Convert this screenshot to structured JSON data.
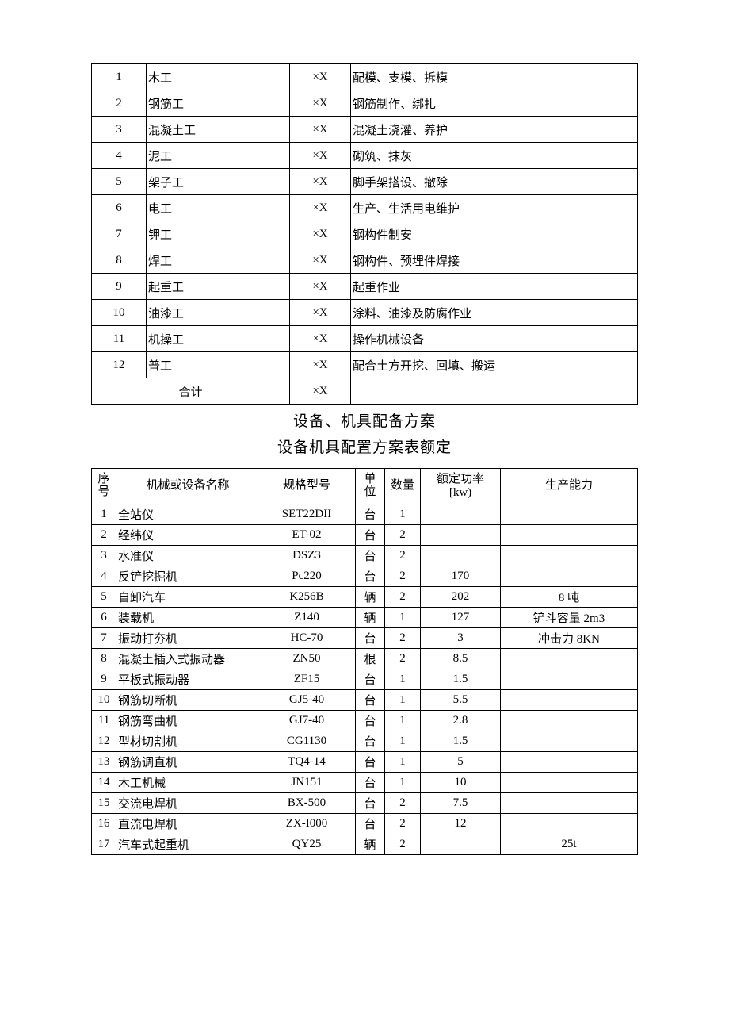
{
  "table1": {
    "rows": [
      {
        "no": "1",
        "name": "木工",
        "qty": "×X",
        "desc": "配模、支模、拆模"
      },
      {
        "no": "2",
        "name": "钢筋工",
        "qty": "×X",
        "desc": "钢筋制作、绑扎"
      },
      {
        "no": "3",
        "name": "混凝土工",
        "qty": "×X",
        "desc": "混凝土浇灌、养护"
      },
      {
        "no": "4",
        "name": "泥工",
        "qty": "×X",
        "desc": "砌筑、抹灰"
      },
      {
        "no": "5",
        "name": "架子工",
        "qty": "×X",
        "desc": "脚手架搭设、撤除"
      },
      {
        "no": "6",
        "name": "电工",
        "qty": "×X",
        "desc": "生产、生活用电维护"
      },
      {
        "no": "7",
        "name": "钾工",
        "qty": "×X",
        "desc": "钢构件制安"
      },
      {
        "no": "8",
        "name": "焊工",
        "qty": "×X",
        "desc": "钢构件、预埋件焊接"
      },
      {
        "no": "9",
        "name": "起重工",
        "qty": "×X",
        "desc": "起重作业"
      },
      {
        "no": "10",
        "name": "油漆工",
        "qty": "×X",
        "desc": "涂料、油漆及防腐作业"
      },
      {
        "no": "11",
        "name": "机操工",
        "qty": "×X",
        "desc": "操作机械设备"
      },
      {
        "no": "12",
        "name": "普工",
        "qty": "×X",
        "desc": "配合土方开挖、回填、搬运"
      }
    ],
    "total_label": "合计",
    "total_qty": "×X"
  },
  "section_title": "设备、机具配备方案",
  "section_subtitle": "设备机具配置方案表额定",
  "table2": {
    "headers": {
      "no": "序号",
      "name": "机械或设备名称",
      "spec": "规格型号",
      "unit": "单位",
      "qty": "数量",
      "power": "额定功率[kw)",
      "cap": "生产能力"
    },
    "rows": [
      {
        "no": "1",
        "name": "全站仪",
        "spec": "SET22DII",
        "unit": "台",
        "qty": "1",
        "power": "",
        "cap": ""
      },
      {
        "no": "2",
        "name": "经纬仪",
        "spec": "ET-02",
        "unit": "台",
        "qty": "2",
        "power": "",
        "cap": ""
      },
      {
        "no": "3",
        "name": "水准仪",
        "spec": "DSZ3",
        "unit": "台",
        "qty": "2",
        "power": "",
        "cap": ""
      },
      {
        "no": "4",
        "name": "反铲挖掘机",
        "spec": "Pc220",
        "unit": "台",
        "qty": "2",
        "power": "170",
        "cap": ""
      },
      {
        "no": "5",
        "name": "自卸汽车",
        "spec": "K256B",
        "unit": "辆",
        "qty": "2",
        "power": "202",
        "cap": "8 吨"
      },
      {
        "no": "6",
        "name": "装载机",
        "spec": "Z140",
        "unit": "辆",
        "qty": "1",
        "power": "127",
        "cap": "铲斗容量 2m3"
      },
      {
        "no": "7",
        "name": "振动打夯机",
        "spec": "HC-70",
        "unit": "台",
        "qty": "2",
        "power": "3",
        "cap": "冲击力 8KN"
      },
      {
        "no": "8",
        "name": "混凝土插入式振动器",
        "spec": "ZN50",
        "unit": "根",
        "qty": "2",
        "power": "8.5",
        "cap": ""
      },
      {
        "no": "9",
        "name": "平板式振动器",
        "spec": "ZF15",
        "unit": "台",
        "qty": "1",
        "power": "1.5",
        "cap": ""
      },
      {
        "no": "10",
        "name": "钢筋切断机",
        "spec": "GJ5-40",
        "unit": "台",
        "qty": "1",
        "power": "5.5",
        "cap": ""
      },
      {
        "no": "11",
        "name": "钢筋弯曲机",
        "spec": "GJ7-40",
        "unit": "台",
        "qty": "1",
        "power": "2.8",
        "cap": ""
      },
      {
        "no": "12",
        "name": "型材切割机",
        "spec": "CG1130",
        "unit": "台",
        "qty": "1",
        "power": "1.5",
        "cap": ""
      },
      {
        "no": "13",
        "name": "钢筋调直机",
        "spec": "TQ4-14",
        "unit": "台",
        "qty": "1",
        "power": "5",
        "cap": ""
      },
      {
        "no": "14",
        "name": "木工机械",
        "spec": "JN151",
        "unit": "台",
        "qty": "1",
        "power": "10",
        "cap": ""
      },
      {
        "no": "15",
        "name": "交流电焊机",
        "spec": "BX-500",
        "unit": "台",
        "qty": "2",
        "power": "7.5",
        "cap": ""
      },
      {
        "no": "16",
        "name": "直流电焊机",
        "spec": "ZX-I000",
        "unit": "台",
        "qty": "2",
        "power": "12",
        "cap": ""
      },
      {
        "no": "17",
        "name": "汽车式起重机",
        "spec": "QY25",
        "unit": "辆",
        "qty": "2",
        "power": "",
        "cap": "25t"
      }
    ]
  }
}
